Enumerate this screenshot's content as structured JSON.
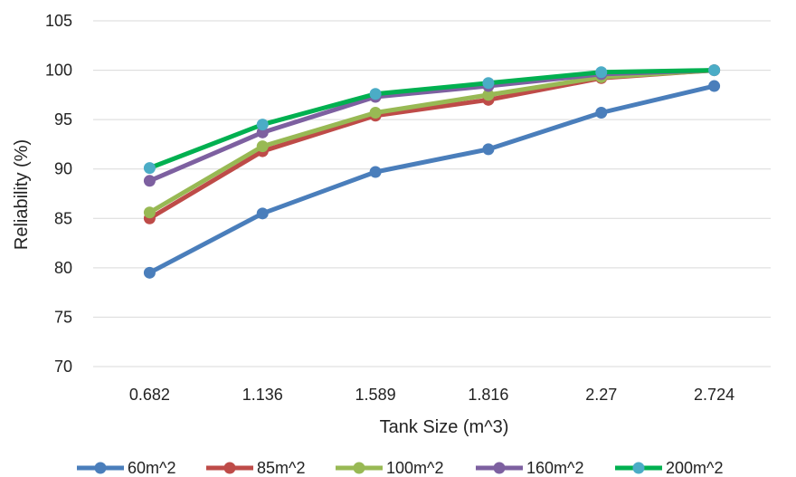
{
  "chart_data": {
    "type": "line",
    "title": "",
    "xlabel": "Tank Size (m^3)",
    "ylabel": "Reliability (%)",
    "categories": [
      "0.682",
      "1.136",
      "1.589",
      "1.816",
      "2.27",
      "2.724"
    ],
    "ylim": [
      70,
      105
    ],
    "yticks": [
      70,
      75,
      80,
      85,
      90,
      95,
      100,
      105
    ],
    "grid": true,
    "legend_position": "bottom",
    "series": [
      {
        "name": "60m^2",
        "color": "#4a7ebb",
        "marker_color": "#4a7ebb",
        "values": [
          79.5,
          85.5,
          89.7,
          92.0,
          95.7,
          98.4
        ]
      },
      {
        "name": "85m^2",
        "color": "#be4b48",
        "marker_color": "#be4b48",
        "values": [
          85.0,
          91.8,
          95.4,
          97.0,
          99.2,
          100.0
        ]
      },
      {
        "name": "100m^2",
        "color": "#98b954",
        "marker_color": "#98b954",
        "values": [
          85.6,
          92.3,
          95.7,
          97.5,
          99.3,
          100.0
        ]
      },
      {
        "name": "160m^2",
        "color": "#7d60a0",
        "marker_color": "#7d60a0",
        "values": [
          88.8,
          93.7,
          97.3,
          98.4,
          99.6,
          100.0
        ]
      },
      {
        "name": "200m^2",
        "color": "#00b050",
        "marker_color": "#4bacc6",
        "values": [
          90.1,
          94.5,
          97.6,
          98.7,
          99.8,
          100.0
        ]
      }
    ]
  }
}
